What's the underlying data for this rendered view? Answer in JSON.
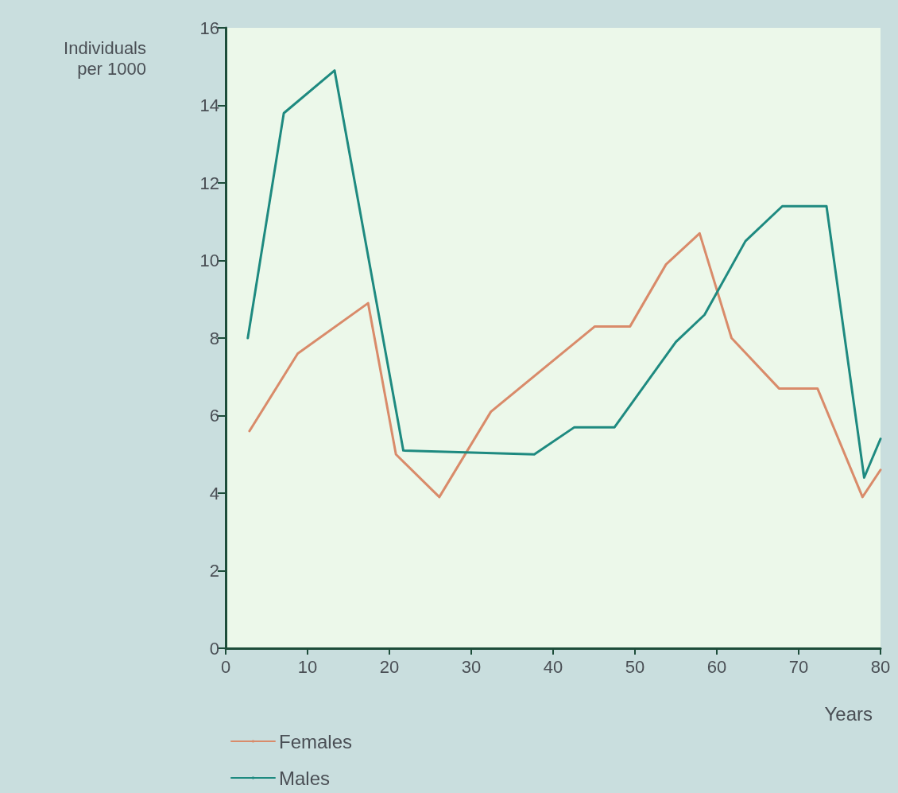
{
  "chart_data": {
    "type": "line",
    "xlabel": "Years",
    "ylabel": "Individuals\nper 1000",
    "xlim": [
      0,
      80
    ],
    "xticks": [
      0,
      10,
      20,
      30,
      40,
      50,
      60,
      70,
      80
    ],
    "ylim": [
      0,
      16
    ],
    "yticks": [
      0,
      2,
      4,
      6,
      8,
      10,
      12,
      14,
      16
    ],
    "grid": false,
    "legend": "bottom left",
    "marker": "none",
    "line_style": "solid",
    "series": [
      {
        "name": "Females",
        "color": "#d98b6a",
        "x": [
          2.9,
          8.8,
          17.4,
          20.8,
          26.1,
          32.4,
          45.1,
          49.4,
          53.8,
          57.9,
          61.8,
          67.6,
          72.3,
          77.8,
          80
        ],
        "values": [
          5.6,
          7.6,
          8.9,
          5.0,
          3.9,
          6.1,
          8.3,
          8.3,
          9.9,
          10.7,
          8.0,
          6.7,
          6.7,
          3.9,
          4.6
        ]
      },
      {
        "name": "Males",
        "color": "#1e8a80",
        "x": [
          2.7,
          7.1,
          13.3,
          21.7,
          37.7,
          42.6,
          47.5,
          55,
          58.5,
          63.5,
          68,
          73.4,
          78,
          80
        ],
        "values": [
          8.0,
          13.8,
          14.9,
          5.1,
          5.0,
          5.7,
          5.7,
          7.9,
          8.6,
          10.5,
          11.4,
          11.4,
          4.4,
          5.4
        ]
      }
    ]
  }
}
